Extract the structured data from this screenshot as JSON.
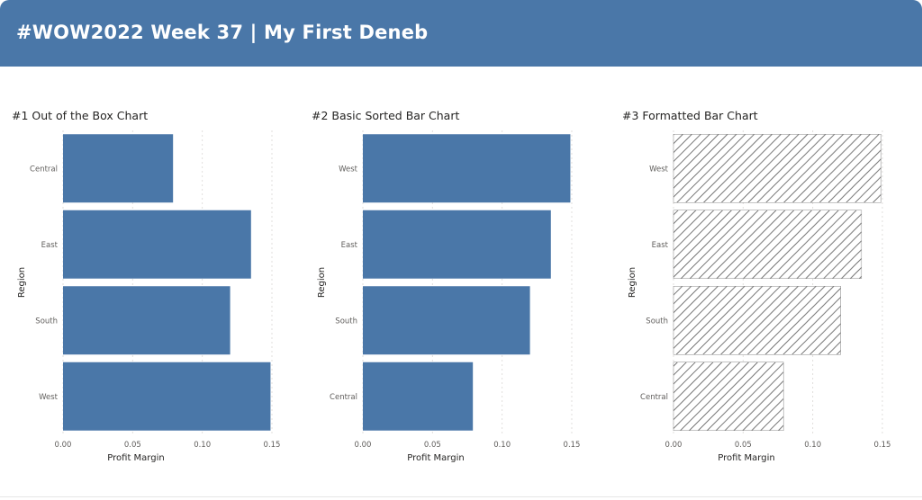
{
  "header": {
    "title": "#WOW2022 Week 37 | My First Deneb"
  },
  "chart_data": [
    {
      "type": "bar",
      "title": "#1 Out of the Box Chart",
      "categories": [
        "Central",
        "East",
        "South",
        "West"
      ],
      "values": [
        0.079,
        0.135,
        0.12,
        0.149
      ],
      "xlabel": "Profit Margin",
      "ylabel": "Region",
      "xlim": [
        0,
        0.15
      ],
      "xticks": [
        "0.00",
        "0.05",
        "0.10",
        "0.15"
      ],
      "grid": true,
      "fill": "solid",
      "color": "#4a77a8"
    },
    {
      "type": "bar",
      "title": "#2 Basic Sorted Bar Chart",
      "categories": [
        "West",
        "East",
        "South",
        "Central"
      ],
      "values": [
        0.149,
        0.135,
        0.12,
        0.079
      ],
      "xlabel": "Profit Margin",
      "ylabel": "Region",
      "xlim": [
        0,
        0.15
      ],
      "xticks": [
        "0.00",
        "0.05",
        "0.10",
        "0.15"
      ],
      "grid": true,
      "fill": "solid",
      "color": "#4a77a8"
    },
    {
      "type": "bar",
      "title": "#3 Formatted Bar Chart",
      "categories": [
        "West",
        "East",
        "South",
        "Central"
      ],
      "values": [
        0.149,
        0.135,
        0.12,
        0.079
      ],
      "xlabel": "Profit Margin",
      "ylabel": "Region",
      "xlim": [
        0,
        0.15
      ],
      "xticks": [
        "0.00",
        "0.05",
        "0.10",
        "0.15"
      ],
      "grid": true,
      "fill": "diagonal-hatch",
      "color": "#555555"
    }
  ]
}
